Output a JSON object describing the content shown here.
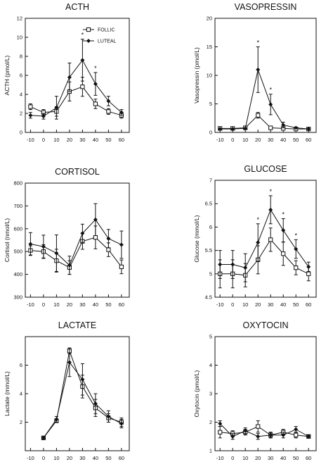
{
  "figure": {
    "x_ticks": [
      "-10",
      "0",
      "10",
      "20",
      "30",
      "40",
      "50",
      "60"
    ],
    "legend": {
      "follic": "FOLLIC",
      "luteal": "LUTEAL"
    }
  },
  "chart_data": [
    {
      "type": "line",
      "title": "ACTH",
      "ylabel": "ACTH (pmol/L)",
      "ylim": [
        0,
        12
      ],
      "yticks": [
        0,
        2,
        4,
        6,
        8,
        10,
        12
      ],
      "x": [
        -10,
        0,
        10,
        20,
        30,
        40,
        50,
        60
      ],
      "legend": "top-right",
      "series": [
        {
          "name": "FOLLIC",
          "marker": "open-square",
          "values": [
            2.7,
            2.1,
            2.2,
            4.3,
            4.8,
            3.0,
            2.2,
            1.8
          ],
          "err": [
            0.3,
            0.3,
            0.5,
            1.0,
            1.0,
            0.5,
            0.3,
            0.3
          ]
        },
        {
          "name": "LUTEAL",
          "marker": "filled-diamond",
          "values": [
            1.8,
            1.7,
            2.6,
            5.8,
            7.6,
            5.1,
            3.3,
            2.1
          ],
          "err": [
            0.3,
            0.3,
            1.2,
            1.5,
            2.2,
            1.2,
            0.5,
            0.3
          ]
        }
      ],
      "significance": [
        "*",
        "*"
      ],
      "significance_x": [
        30,
        40
      ]
    },
    {
      "type": "line",
      "title": "VASOPRESSIN",
      "ylabel": "Vasopressin (pmol/L)",
      "ylim": [
        0,
        20
      ],
      "yticks": [
        0,
        5,
        10,
        15,
        20
      ],
      "x": [
        -10,
        0,
        10,
        20,
        30,
        40,
        50,
        60
      ],
      "series": [
        {
          "name": "FOLLIC",
          "marker": "open-square",
          "values": [
            0.7,
            0.7,
            0.8,
            3.0,
            0.8,
            0.7,
            0.6,
            0.6
          ],
          "err": [
            0,
            0,
            0,
            0.5,
            0,
            0,
            0,
            0
          ]
        },
        {
          "name": "LUTEAL",
          "marker": "filled-diamond",
          "values": [
            0.6,
            0.6,
            0.7,
            11.0,
            4.9,
            1.3,
            0.8,
            0.6
          ],
          "err": [
            0,
            0,
            0,
            4.0,
            1.8,
            0.5,
            0,
            0
          ]
        }
      ],
      "significance": [
        "*",
        "*"
      ],
      "significance_x": [
        20,
        30
      ]
    },
    {
      "type": "line",
      "title": "CORTISOL",
      "ylabel": "Cortisol (nmol/L)",
      "ylim": [
        300,
        800
      ],
      "yticks": [
        300,
        400,
        500,
        600,
        700,
        800
      ],
      "x": [
        -10,
        0,
        10,
        20,
        30,
        40,
        50,
        60
      ],
      "series": [
        {
          "name": "FOLLIC",
          "marker": "open-square",
          "values": [
            505,
            500,
            460,
            430,
            545,
            562,
            508,
            433
          ],
          "err": [
            20,
            30,
            50,
            30,
            35,
            50,
            30,
            30
          ]
        },
        {
          "name": "LUTEAL",
          "marker": "filled-diamond",
          "values": [
            533,
            522,
            493,
            440,
            580,
            640,
            557,
            530
          ],
          "err": [
            50,
            50,
            80,
            40,
            40,
            70,
            40,
            60
          ]
        }
      ],
      "significance": [],
      "significance_x": []
    },
    {
      "type": "line",
      "title": "GLUCOSE",
      "ylabel": "Glucose (mmol/L)",
      "ylim": [
        4.5,
        7
      ],
      "yticks": [
        4.5,
        5,
        5.5,
        6,
        6.5,
        7
      ],
      "x": [
        -10,
        0,
        10,
        20,
        30,
        40,
        50,
        60
      ],
      "series": [
        {
          "name": "FOLLIC",
          "marker": "open-square",
          "values": [
            5.0,
            5.0,
            4.97,
            5.3,
            5.73,
            5.43,
            5.13,
            5.0
          ],
          "err": [
            0.3,
            0.3,
            0.25,
            0.3,
            0.25,
            0.25,
            0.15,
            0.15
          ]
        },
        {
          "name": "LUTEAL",
          "marker": "filled-diamond",
          "values": [
            5.2,
            5.2,
            5.13,
            5.67,
            6.37,
            5.93,
            5.53,
            5.15
          ],
          "err": [
            0.3,
            0.3,
            0.3,
            0.4,
            0.3,
            0.25,
            0.2,
            0.1
          ]
        }
      ],
      "significance": [
        "*",
        "*",
        "*",
        "*"
      ],
      "significance_x": [
        20,
        30,
        40,
        50
      ]
    },
    {
      "type": "line",
      "title": "LACTATE",
      "ylabel": "Lactate (mmol/L)",
      "ylim": [
        0,
        8
      ],
      "yticks": [
        2,
        4,
        6
      ],
      "x": [
        0,
        10,
        20,
        30,
        40,
        50,
        60
      ],
      "series": [
        {
          "name": "FOLLIC",
          "marker": "open-square",
          "values": [
            0.9,
            2.1,
            7.0,
            4.5,
            3.0,
            2.3,
            2.0
          ],
          "err": [
            0.1,
            0.1,
            0.2,
            0.8,
            0.6,
            0.3,
            0.3
          ]
        },
        {
          "name": "LUTEAL",
          "marker": "filled-diamond",
          "values": [
            0.9,
            2.2,
            6.2,
            5.0,
            3.3,
            2.4,
            1.9
          ],
          "err": [
            0.1,
            0.2,
            1.0,
            1.1,
            0.7,
            0.4,
            0.3
          ]
        }
      ],
      "significance": [],
      "significance_x": []
    },
    {
      "type": "line",
      "title": "OXYTOCIN",
      "ylabel": "Oxytocin (pmol/L)",
      "ylim": [
        1,
        5
      ],
      "yticks": [
        1,
        2,
        3,
        4,
        5
      ],
      "x": [
        -10,
        0,
        10,
        20,
        30,
        40,
        50,
        60
      ],
      "series": [
        {
          "name": "FOLLIC",
          "marker": "open-square",
          "values": [
            1.65,
            1.6,
            1.65,
            1.85,
            1.55,
            1.65,
            1.55,
            1.5
          ],
          "err": [
            0.2,
            0.1,
            0.1,
            0.2,
            0.1,
            0.1,
            0.1,
            0.05
          ]
        },
        {
          "name": "LUTEAL",
          "marker": "filled-diamond",
          "values": [
            1.95,
            1.5,
            1.7,
            1.5,
            1.55,
            1.55,
            1.75,
            1.5
          ],
          "err": [
            0.1,
            0.1,
            0.1,
            0.1,
            0.1,
            0.1,
            0.1,
            0.05
          ]
        }
      ],
      "significance": [],
      "significance_x": []
    }
  ]
}
